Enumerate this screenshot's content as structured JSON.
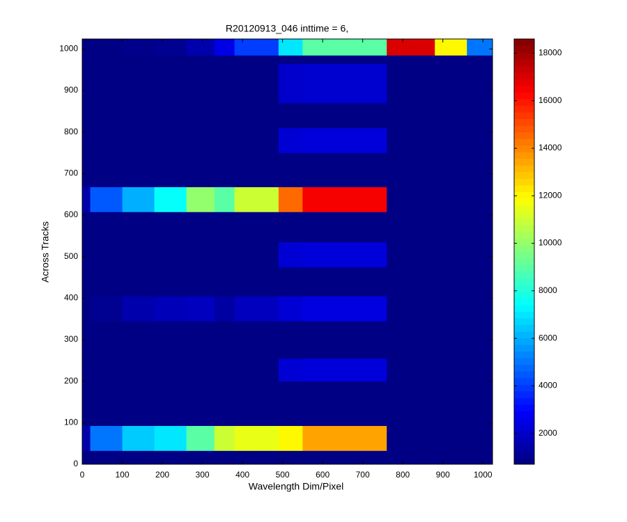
{
  "chart_data": {
    "type": "heatmap",
    "title": "R20120913_046 inttime = 6,",
    "xlabel": "Wavelength Dim/Pixel",
    "ylabel": "Across Tracks",
    "colormap": "jet",
    "xlim": [
      0,
      1024
    ],
    "ylim": [
      0,
      1024
    ],
    "xticks": [
      0,
      100,
      200,
      300,
      400,
      500,
      600,
      700,
      800,
      900,
      1000
    ],
    "yticks": [
      0,
      100,
      200,
      300,
      400,
      500,
      600,
      700,
      800,
      900,
      1000
    ],
    "clim": [
      700,
      18600
    ],
    "cticks": [
      2000,
      4000,
      6000,
      8000,
      10000,
      12000,
      14000,
      16000,
      18000
    ],
    "x_edges": [
      0,
      20,
      100,
      180,
      260,
      330,
      380,
      490,
      550,
      760,
      880,
      960,
      1024
    ],
    "y_edges": [
      0,
      33,
      93,
      200,
      255,
      345,
      405,
      475,
      535,
      608,
      668,
      750,
      810,
      870,
      965,
      985,
      1024
    ],
    "values": [
      [
        800,
        800,
        800,
        800,
        800,
        800,
        800,
        800,
        800,
        800,
        800,
        800
      ],
      [
        1500,
        5000,
        6500,
        7000,
        9000,
        11000,
        11500,
        12000,
        13500,
        800,
        800,
        800
      ],
      [
        800,
        800,
        800,
        800,
        800,
        800,
        800,
        800,
        800,
        800,
        800,
        800
      ],
      [
        800,
        800,
        800,
        800,
        800,
        800,
        800,
        2200,
        2300,
        800,
        800,
        800
      ],
      [
        800,
        800,
        800,
        800,
        800,
        800,
        800,
        800,
        800,
        800,
        800,
        800
      ],
      [
        800,
        1000,
        1500,
        1700,
        1800,
        1300,
        1800,
        2200,
        2400,
        800,
        800,
        800
      ],
      [
        800,
        800,
        800,
        800,
        800,
        800,
        800,
        800,
        800,
        800,
        800,
        800
      ],
      [
        800,
        800,
        800,
        800,
        800,
        800,
        800,
        2200,
        2300,
        800,
        800,
        800
      ],
      [
        800,
        800,
        800,
        800,
        800,
        800,
        800,
        800,
        800,
        800,
        800,
        800
      ],
      [
        1500,
        4500,
        6000,
        7500,
        10000,
        9000,
        11000,
        14500,
        16500,
        800,
        800,
        800
      ],
      [
        800,
        800,
        800,
        800,
        800,
        800,
        800,
        800,
        800,
        800,
        800,
        800
      ],
      [
        800,
        800,
        800,
        800,
        800,
        800,
        800,
        2200,
        2300,
        800,
        800,
        800
      ],
      [
        800,
        800,
        800,
        800,
        800,
        800,
        800,
        800,
        800,
        800,
        800,
        800
      ],
      [
        800,
        800,
        800,
        800,
        800,
        800,
        800,
        2000,
        2100,
        800,
        800,
        800
      ],
      [
        800,
        800,
        800,
        800,
        800,
        800,
        800,
        800,
        800,
        800,
        800,
        800
      ],
      [
        800,
        800,
        900,
        1000,
        1500,
        2500,
        4000,
        7000,
        9000,
        17000,
        12000,
        5000
      ]
    ]
  }
}
